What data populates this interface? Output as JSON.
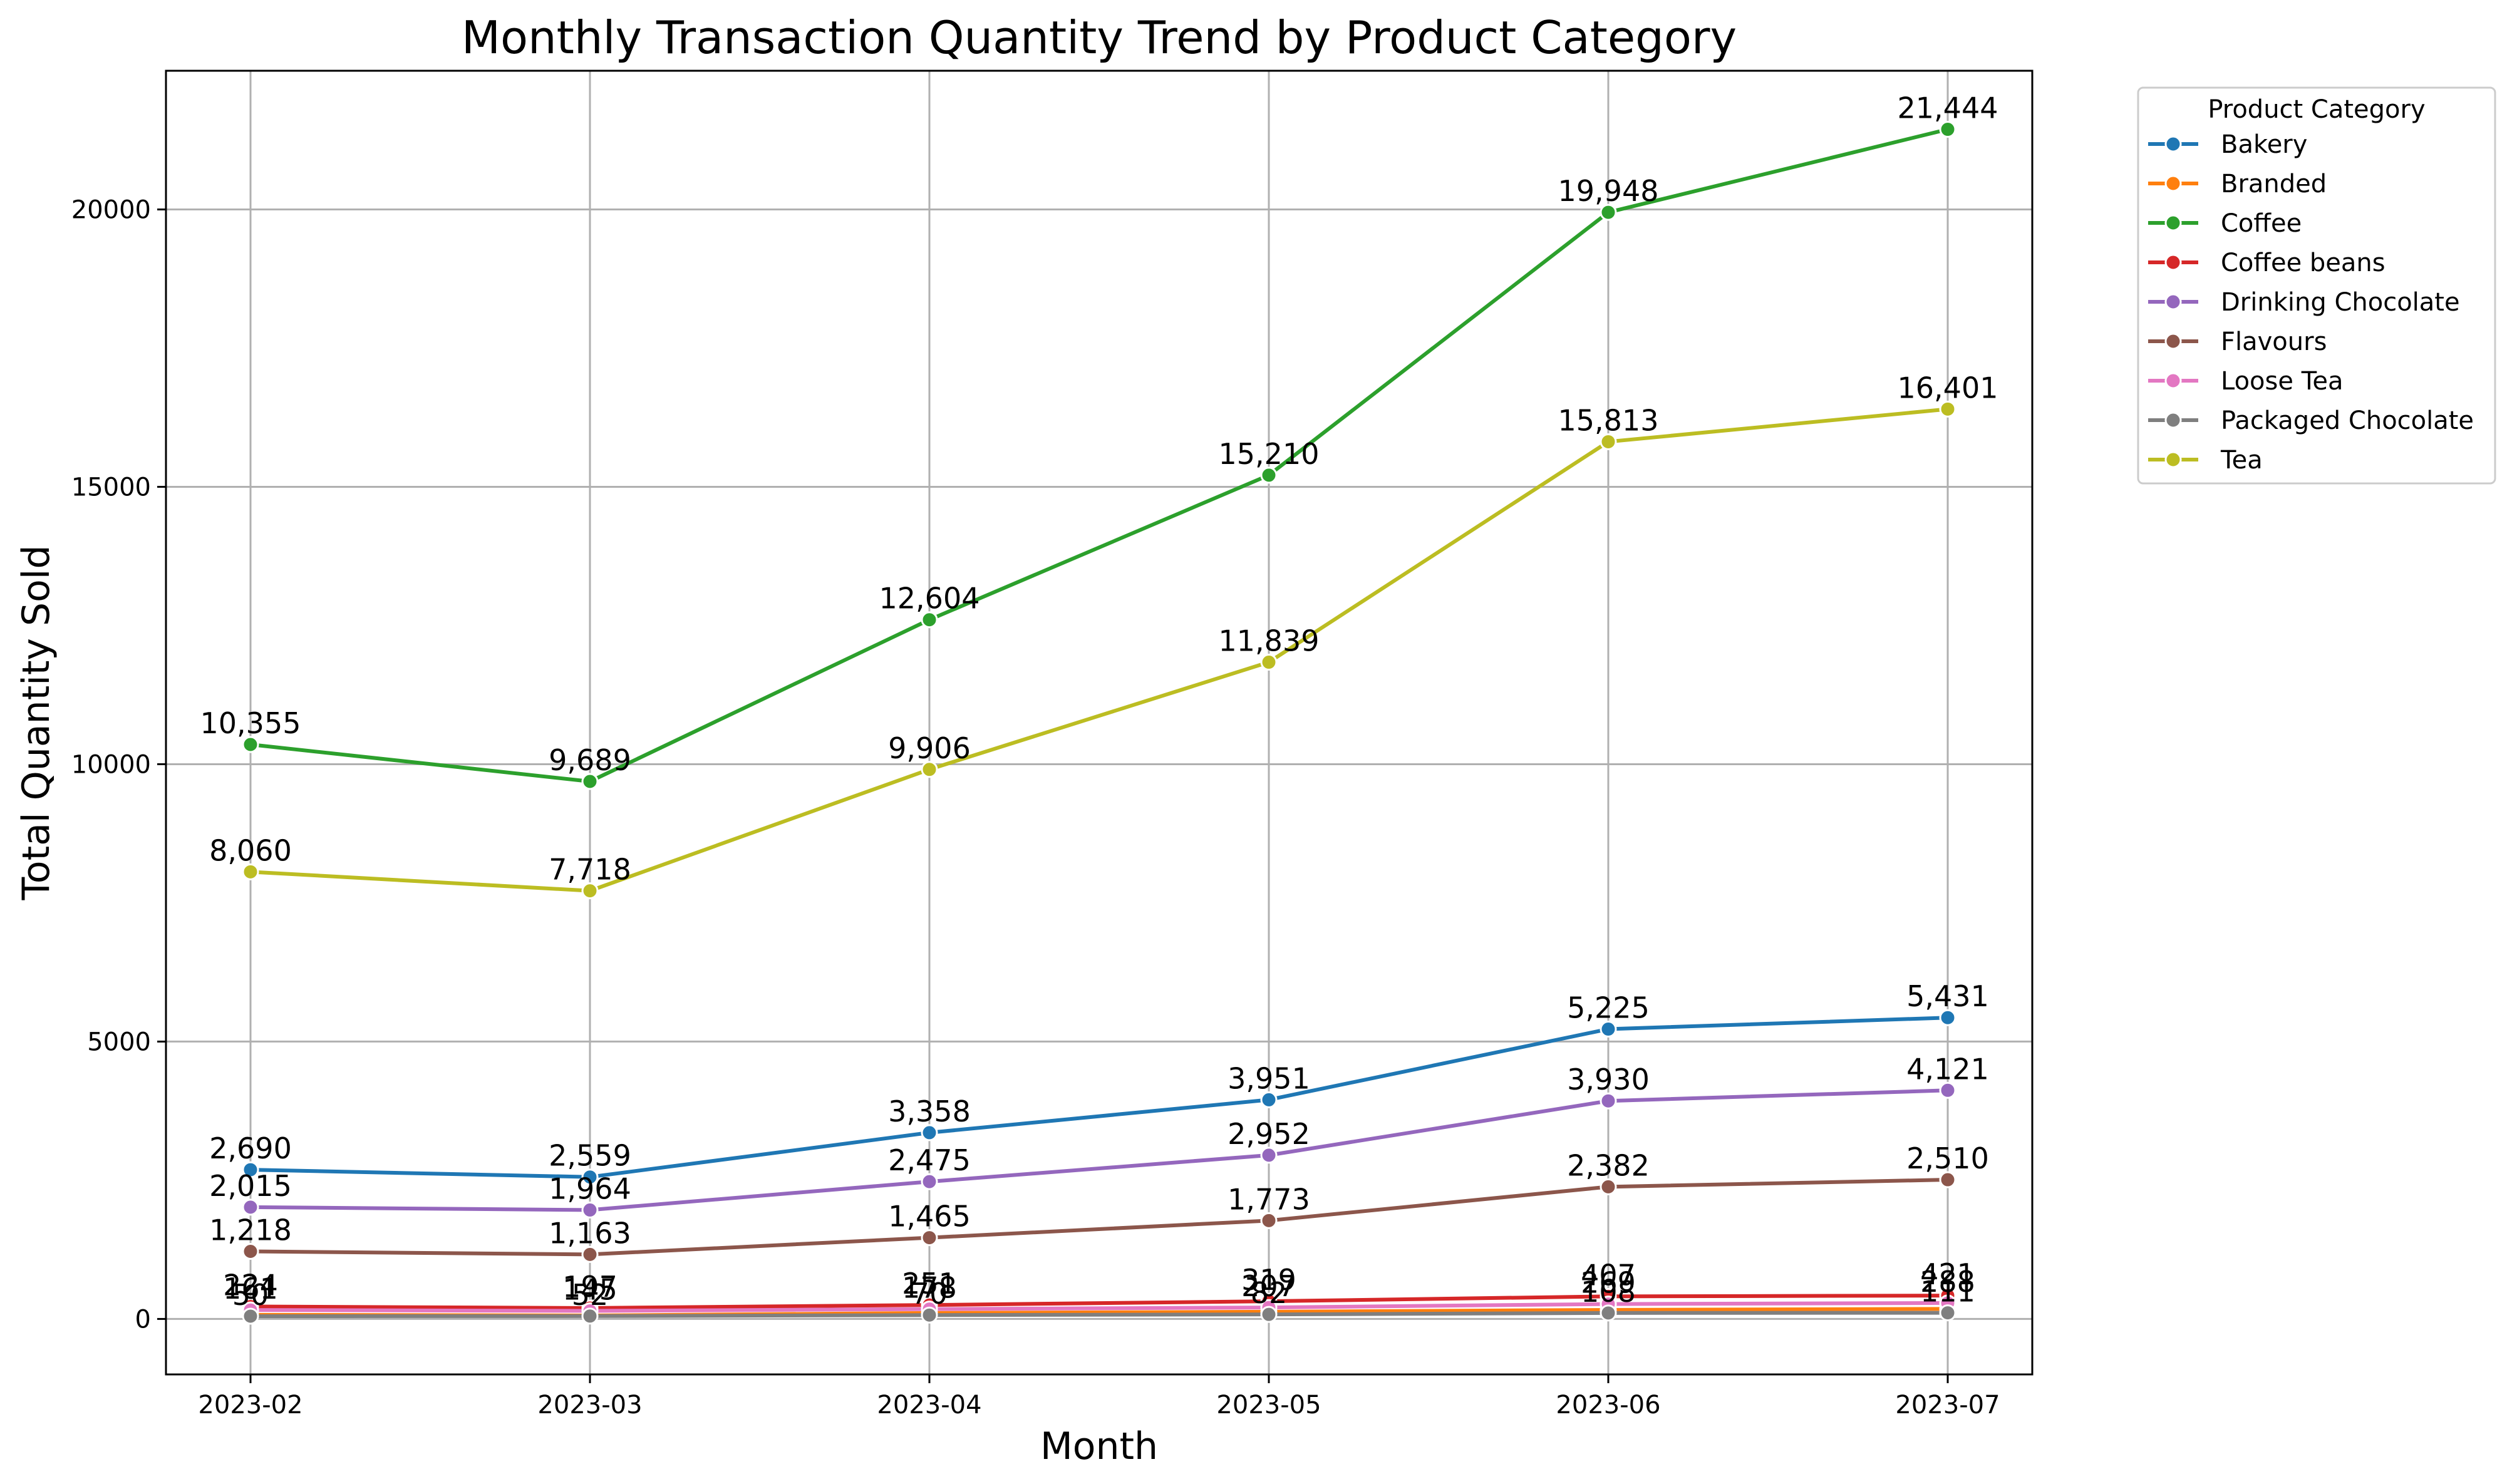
{
  "chart_data": {
    "type": "line",
    "title": "Monthly Transaction Quantity Trend by Product Category",
    "xlabel": "Month",
    "ylabel": "Total Quantity Sold",
    "categories": [
      "2023-02",
      "2023-03",
      "2023-04",
      "2023-05",
      "2023-06",
      "2023-07"
    ],
    "ylim": [
      -1000,
      22500
    ],
    "yticks": [
      0,
      5000,
      10000,
      15000,
      20000
    ],
    "grid": true,
    "legend": {
      "title": "Product Category",
      "placement": "outside-top-right"
    },
    "series": [
      {
        "name": "Bakery",
        "color": "#1f77b4",
        "values": [
          2690,
          2559,
          3358,
          3951,
          5225,
          5431
        ],
        "labels": [
          "2,690",
          "2,559",
          "3,358",
          "3,951",
          "5,225",
          "5,431"
        ]
      },
      {
        "name": "Branded",
        "color": "#ff7f0e",
        "values": [
          74,
          62,
          108,
          130,
          163,
          181
        ],
        "labels": [
          "",
          "",
          "",
          "",
          "",
          ""
        ]
      },
      {
        "name": "Coffee",
        "color": "#2ca02c",
        "values": [
          10355,
          9689,
          12604,
          15210,
          19948,
          21444
        ],
        "labels": [
          "10,355",
          "9,689",
          "12,604",
          "15,210",
          "19,948",
          "21,444"
        ]
      },
      {
        "name": "Coffee beans",
        "color": "#d62728",
        "values": [
          224,
          197,
          251,
          319,
          407,
          421
        ],
        "labels": [
          "224",
          "197",
          "251",
          "319",
          "407",
          "421"
        ]
      },
      {
        "name": "Drinking Chocolate",
        "color": "#9467bd",
        "values": [
          2015,
          1964,
          2475,
          2952,
          3930,
          4121
        ],
        "labels": [
          "2,015",
          "1,964",
          "2,475",
          "2,952",
          "3,930",
          "4,121"
        ]
      },
      {
        "name": "Flavours",
        "color": "#8c564b",
        "values": [
          1218,
          1163,
          1465,
          1773,
          2382,
          2510
        ],
        "labels": [
          "1,218",
          "1,163",
          "1,465",
          "1,773",
          "2,382",
          "2,510"
        ]
      },
      {
        "name": "Loose Tea",
        "color": "#e377c2",
        "values": [
          161,
          145,
          178,
          207,
          269,
          288
        ],
        "labels": [
          "161",
          "145",
          "178",
          "207",
          "269",
          "288"
        ]
      },
      {
        "name": "Packaged Chocolate",
        "color": "#7f7f7f",
        "values": [
          50,
          52,
          70,
          82,
          108,
          111
        ],
        "labels": [
          "50",
          "52",
          "70",
          "82",
          "108",
          "111"
        ]
      },
      {
        "name": "Tea",
        "color": "#bcbd22",
        "values": [
          8060,
          7718,
          9906,
          11839,
          15813,
          16401
        ],
        "labels": [
          "8,060",
          "7,718",
          "9,906",
          "11,839",
          "15,813",
          "16,401"
        ]
      }
    ]
  }
}
